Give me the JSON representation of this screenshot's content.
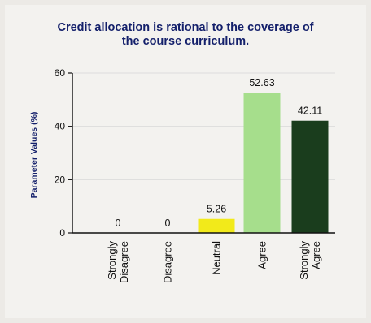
{
  "chart_data": {
    "type": "bar",
    "title_lines": [
      "Credit allocation is rational to the coverage of",
      "the course curriculum."
    ],
    "ylabel": "Parameter Values (%)",
    "xlabel": "",
    "categories": [
      [
        "Strongly",
        "Disagree"
      ],
      [
        "Disagree"
      ],
      [
        "Neutral"
      ],
      [
        "Agree"
      ],
      [
        "Strongly",
        "Agree"
      ]
    ],
    "values": [
      0,
      0,
      5.26,
      52.63,
      42.11
    ],
    "value_labels": [
      "0",
      "0",
      "5.26",
      "52.63",
      "42.11"
    ],
    "bar_colors": [
      "#cccccc",
      "#cccccc",
      "#f2ea1a",
      "#a6de8c",
      "#1a3d1d"
    ],
    "ylim": [
      0,
      60
    ],
    "yticks": [
      0,
      20,
      40,
      60
    ],
    "grid": true,
    "legend": "none"
  }
}
